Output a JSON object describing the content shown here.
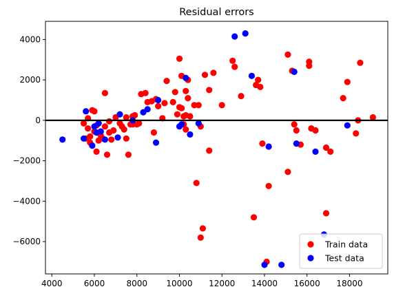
{
  "chart_data": {
    "type": "scatter",
    "title": "Residual errors",
    "xlabel": "",
    "ylabel": "",
    "xlim": [
      3700,
      19800
    ],
    "ylim": [
      -7600,
      4900
    ],
    "x_ticks": [
      4000,
      6000,
      8000,
      10000,
      12000,
      14000,
      16000,
      18000
    ],
    "y_ticks": [
      -6000,
      -4000,
      -2000,
      0,
      2000,
      4000
    ],
    "zero_line": 0,
    "grid": false,
    "legend_position": "bottom-right",
    "series": [
      {
        "name": "Train data",
        "color": "#ff0000",
        "points": [
          [
            5500,
            -150
          ],
          [
            5600,
            -900
          ],
          [
            5700,
            100
          ],
          [
            5700,
            -400
          ],
          [
            5800,
            -1100
          ],
          [
            5800,
            -800
          ],
          [
            5900,
            500
          ],
          [
            6000,
            450
          ],
          [
            6000,
            -550
          ],
          [
            6100,
            -1550
          ],
          [
            6100,
            -250
          ],
          [
            6200,
            -1000
          ],
          [
            6300,
            -750
          ],
          [
            6400,
            -900
          ],
          [
            6500,
            1350
          ],
          [
            6500,
            -300
          ],
          [
            6600,
            -1700
          ],
          [
            6700,
            -600
          ],
          [
            6700,
            -50
          ],
          [
            6800,
            -950
          ],
          [
            6900,
            -500
          ],
          [
            7000,
            150
          ],
          [
            7200,
            -150
          ],
          [
            7300,
            -300
          ],
          [
            7400,
            -450
          ],
          [
            7500,
            150
          ],
          [
            7500,
            -900
          ],
          [
            7600,
            -1700
          ],
          [
            7700,
            -200
          ],
          [
            7800,
            -200
          ],
          [
            7800,
            200
          ],
          [
            7900,
            250
          ],
          [
            8000,
            -200
          ],
          [
            8100,
            -150
          ],
          [
            8200,
            1300
          ],
          [
            8400,
            1350
          ],
          [
            8500,
            900
          ],
          [
            8700,
            950
          ],
          [
            8800,
            -600
          ],
          [
            8900,
            1050
          ],
          [
            9000,
            700
          ],
          [
            9200,
            100
          ],
          [
            9300,
            850
          ],
          [
            9400,
            1950
          ],
          [
            9700,
            900
          ],
          [
            9800,
            1400
          ],
          [
            9900,
            300
          ],
          [
            10000,
            3050
          ],
          [
            10000,
            650
          ],
          [
            10100,
            2200
          ],
          [
            10100,
            600
          ],
          [
            10200,
            200
          ],
          [
            10200,
            -200
          ],
          [
            10300,
            1450
          ],
          [
            10300,
            250
          ],
          [
            10300,
            -450
          ],
          [
            10400,
            1100
          ],
          [
            10400,
            2000
          ],
          [
            10500,
            200
          ],
          [
            10700,
            750
          ],
          [
            10800,
            -3100
          ],
          [
            10900,
            750
          ],
          [
            11000,
            -300
          ],
          [
            11000,
            -5800
          ],
          [
            11100,
            -5350
          ],
          [
            11200,
            2250
          ],
          [
            11400,
            1500
          ],
          [
            11400,
            -1500
          ],
          [
            11600,
            2350
          ],
          [
            12000,
            750
          ],
          [
            12500,
            2950
          ],
          [
            12600,
            2650
          ],
          [
            12900,
            1200
          ],
          [
            13500,
            -4800
          ],
          [
            13600,
            1750
          ],
          [
            13700,
            2000
          ],
          [
            13800,
            1650
          ],
          [
            13900,
            -1150
          ],
          [
            14100,
            -7000
          ],
          [
            14200,
            -3250
          ],
          [
            15100,
            3250
          ],
          [
            15100,
            -2550
          ],
          [
            15300,
            2450
          ],
          [
            15400,
            -200
          ],
          [
            15500,
            -500
          ],
          [
            15700,
            -1200
          ],
          [
            16100,
            2900
          ],
          [
            16100,
            2700
          ],
          [
            16200,
            -400
          ],
          [
            16400,
            -500
          ],
          [
            16900,
            -1350
          ],
          [
            16900,
            -4600
          ],
          [
            17100,
            -1550
          ],
          [
            17700,
            1100
          ],
          [
            17900,
            1900
          ],
          [
            18300,
            -650
          ],
          [
            18400,
            0
          ],
          [
            18500,
            2850
          ],
          [
            19100,
            150
          ]
        ]
      },
      {
        "name": "Test data",
        "color": "#0000ff",
        "points": [
          [
            4500,
            -950
          ],
          [
            5500,
            -900
          ],
          [
            5600,
            450
          ],
          [
            5900,
            -1250
          ],
          [
            6000,
            -300
          ],
          [
            6100,
            -600
          ],
          [
            6200,
            -150
          ],
          [
            6300,
            -550
          ],
          [
            6500,
            -950
          ],
          [
            7100,
            -850
          ],
          [
            7200,
            300
          ],
          [
            7800,
            0
          ],
          [
            8300,
            400
          ],
          [
            8500,
            550
          ],
          [
            8900,
            -1100
          ],
          [
            9000,
            1000
          ],
          [
            10000,
            -300
          ],
          [
            10100,
            -200
          ],
          [
            10300,
            2100
          ],
          [
            10500,
            -700
          ],
          [
            10900,
            -150
          ],
          [
            12600,
            4150
          ],
          [
            13100,
            4300
          ],
          [
            13400,
            2200
          ],
          [
            14000,
            -7150
          ],
          [
            14200,
            -1300
          ],
          [
            14800,
            -7150
          ],
          [
            15400,
            2400
          ],
          [
            15500,
            -1150
          ],
          [
            16400,
            -1550
          ],
          [
            16800,
            -5650
          ],
          [
            17900,
            -250
          ]
        ]
      }
    ]
  }
}
